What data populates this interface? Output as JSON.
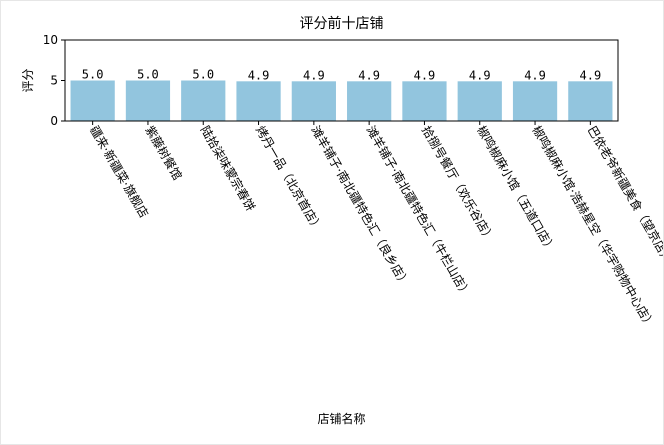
{
  "chart_data": {
    "type": "bar",
    "title": "评分前十店铺",
    "xlabel": "店铺名称",
    "ylabel": "评分",
    "ylim": [
      0,
      10
    ],
    "yticks": [
      0,
      5,
      10
    ],
    "grid": false,
    "bar_color": "#92c5de",
    "categories": [
      "疆来·新疆菜·旗舰店",
      "紫藤树餐馆",
      "陆拾柒味蒙宗春饼",
      "烤丹一品（北京首店）",
      "滩羊铺子·南北疆特色汇（良乡店）",
      "滩羊铺子·南北疆特色汇（牛栏山店）",
      "拾捌号餐厅（欢乐谷店）",
      "椒鸣椒麻小馆（五道口店）",
      "椒鸣椒麻小馆·浩赫星空（华宇购物中心店）",
      "巴依老爷新疆美食（望京店）"
    ],
    "values": [
      5.0,
      5.0,
      5.0,
      4.9,
      4.9,
      4.9,
      4.9,
      4.9,
      4.9,
      4.9
    ],
    "value_labels": [
      "5.0",
      "5.0",
      "5.0",
      "4.9",
      "4.9",
      "4.9",
      "4.9",
      "4.9",
      "4.9",
      "4.9"
    ]
  }
}
